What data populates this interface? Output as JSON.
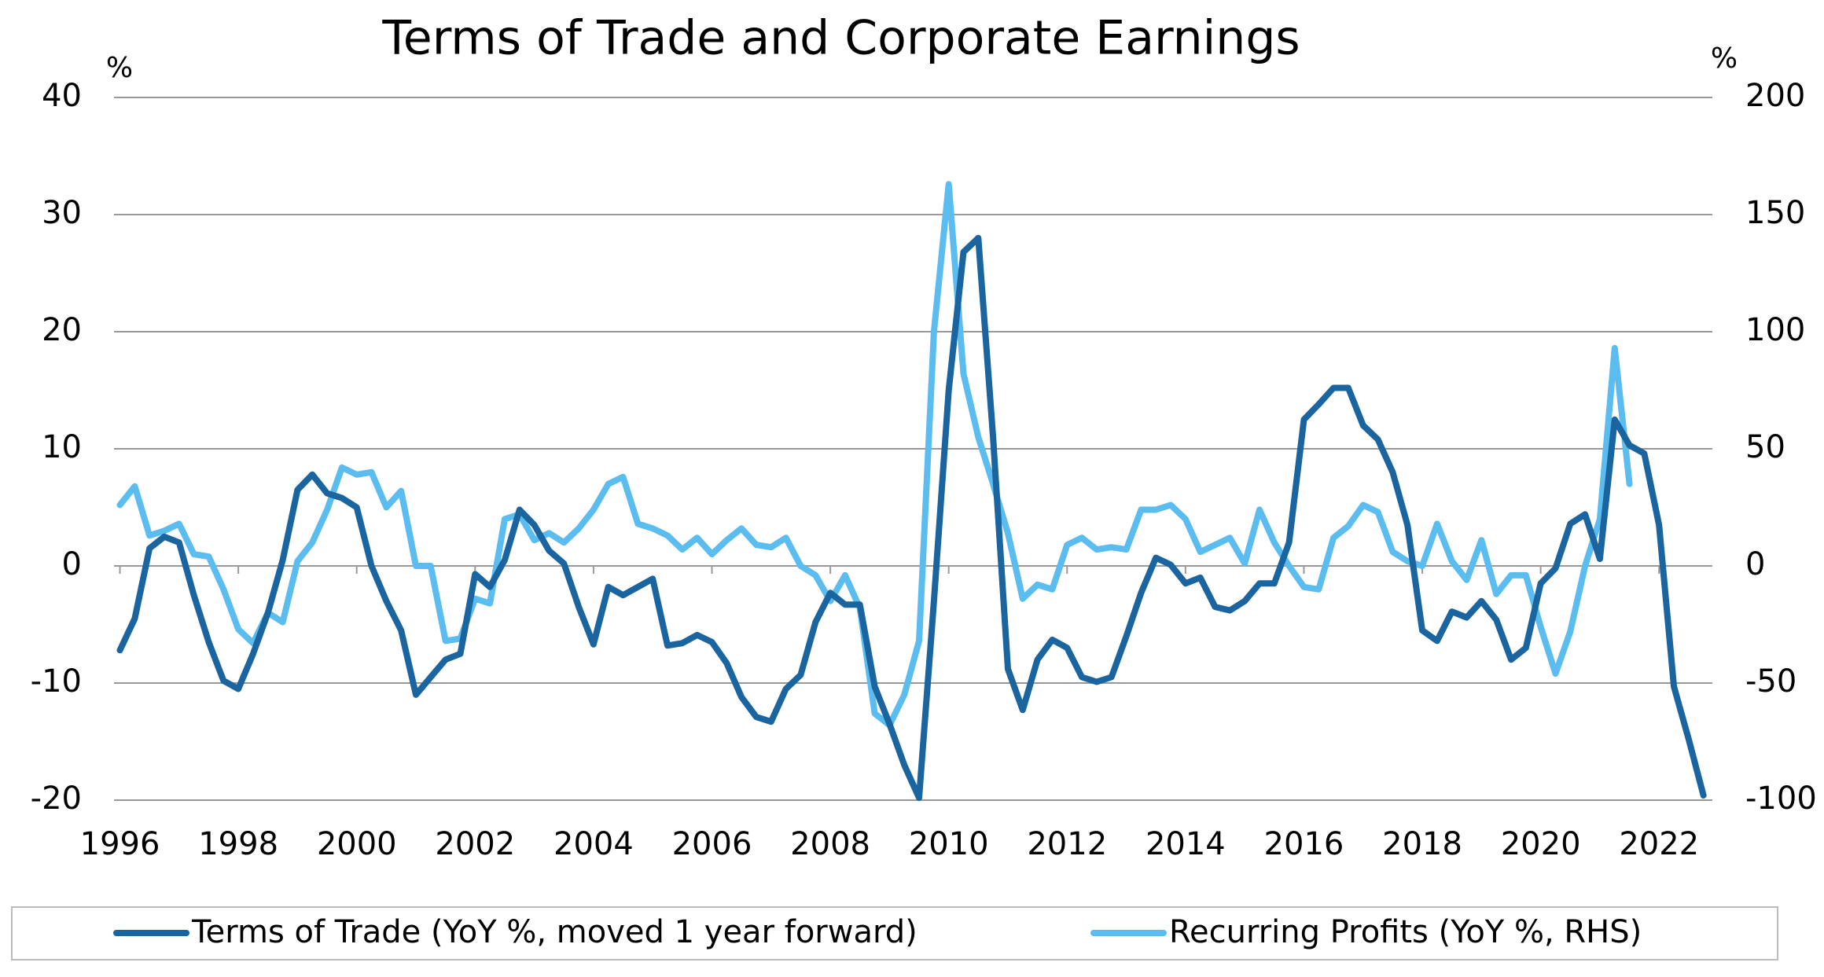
{
  "chart_data": {
    "type": "line",
    "title": "Terms of Trade and Corporate Earnings",
    "y_unit": "%",
    "y2_unit": "%",
    "x": [
      1996,
      1996.25,
      1996.5,
      1996.75,
      1997,
      1997.25,
      1997.5,
      1997.75,
      1998,
      1998.25,
      1998.5,
      1998.75,
      1999,
      1999.25,
      1999.5,
      1999.75,
      2000,
      2000.25,
      2000.5,
      2000.75,
      2001,
      2001.25,
      2001.5,
      2001.75,
      2002,
      2002.25,
      2002.5,
      2002.75,
      2003,
      2003.25,
      2003.5,
      2003.75,
      2004,
      2004.25,
      2004.5,
      2004.75,
      2005,
      2005.25,
      2005.5,
      2005.75,
      2006,
      2006.25,
      2006.5,
      2006.75,
      2007,
      2007.25,
      2007.5,
      2007.75,
      2008,
      2008.25,
      2008.5,
      2008.75,
      2009,
      2009.25,
      2009.5,
      2009.75,
      2010,
      2010.25,
      2010.5,
      2010.75,
      2011,
      2011.25,
      2011.5,
      2011.75,
      2012,
      2012.25,
      2012.5,
      2012.75,
      2013,
      2013.25,
      2013.5,
      2013.75,
      2014,
      2014.25,
      2014.5,
      2014.75,
      2015,
      2015.25,
      2015.5,
      2015.75,
      2016,
      2016.25,
      2016.5,
      2016.75,
      2017,
      2017.25,
      2017.5,
      2017.75,
      2018,
      2018.25,
      2018.5,
      2018.75,
      2019,
      2019.25,
      2019.5,
      2019.75,
      2020,
      2020.25,
      2020.5,
      2020.75,
      2021,
      2021.25,
      2021.5,
      2021.75,
      2022,
      2022.25,
      2022.5,
      2022.75
    ],
    "series": [
      {
        "name": "Terms of Trade (YoY %, moved 1 year forward)",
        "color": "#1a64a0",
        "axis": "y",
        "values": [
          -7.2,
          -4.5,
          1.5,
          2.5,
          2.0,
          -2.5,
          -6.5,
          -9.8,
          -10.5,
          -7.5,
          -4,
          0.5,
          6.5,
          7.8,
          6.2,
          5.8,
          5,
          0,
          -3,
          -5.5,
          -11,
          -9.5,
          -8,
          -7.5,
          -0.7,
          -1.8,
          0.5,
          4.8,
          3.5,
          1.3,
          0.2,
          -3.5,
          -6.7,
          -1.8,
          -2.5,
          -1.8,
          -1.1,
          -6.8,
          -6.6,
          -5.9,
          -6.5,
          -8.3,
          -11.2,
          -12.9,
          -13.3,
          -10.5,
          -9.3,
          -4.8,
          -2.3,
          -3.3,
          -3.3,
          -10.3,
          -13.5,
          -17,
          -19.8,
          -3,
          15,
          26.8,
          28,
          11,
          -8.8,
          -12.3,
          -8,
          -6.3,
          -7,
          -9.5,
          -9.9,
          -9.5,
          -6,
          -2.3,
          0.7,
          0.1,
          -1.5,
          -1,
          -3.5,
          -3.8,
          -3,
          -1.5,
          -1.5,
          2,
          12.5,
          13.8,
          15.2,
          15.2,
          12,
          10.8,
          8,
          3.5,
          -5.5,
          -6.4,
          -3.9,
          -4.4,
          -3,
          -4.6,
          -8,
          -7,
          -1.5,
          -0.2,
          3.6,
          4.4,
          0.6,
          12.5,
          10.3,
          9.6,
          3.5,
          -10.3,
          -14.8,
          -19.6
        ]
      },
      {
        "name": "Recurring Profits (YoY %, RHS)",
        "color": "#5bbcf0",
        "axis": "y2",
        "values": [
          26,
          34,
          13,
          15,
          18,
          5,
          4,
          -10,
          -27,
          -33,
          -20,
          -24,
          2,
          10,
          24,
          42,
          39,
          40,
          25,
          32,
          0,
          0,
          -32,
          -31,
          -14,
          -16,
          20,
          22,
          11,
          14,
          10,
          16,
          24,
          35,
          38,
          18,
          16,
          13,
          7,
          12,
          5,
          11,
          16,
          9,
          8,
          12,
          0,
          -4,
          -15,
          -4,
          -18,
          -63,
          -68,
          -55,
          -32,
          100,
          163,
          82,
          55,
          35,
          14,
          -14,
          -8,
          -10,
          9,
          12,
          7,
          8,
          7,
          24,
          24,
          26,
          20,
          6,
          9,
          12,
          1,
          24,
          10,
          0,
          -9,
          -10,
          12,
          17,
          26,
          23,
          6,
          2,
          0,
          18,
          2,
          -6,
          11,
          -12,
          -4,
          -4,
          -26,
          -46,
          -28,
          0,
          20,
          93,
          35,
          null,
          null,
          null,
          null,
          null
        ]
      }
    ],
    "xlim": [
      1995.9,
      2022.9
    ],
    "xticks": [
      1996,
      1998,
      2000,
      2002,
      2004,
      2006,
      2008,
      2010,
      2012,
      2014,
      2016,
      2018,
      2020,
      2022
    ],
    "ylim": [
      -20,
      40
    ],
    "yticks": [
      -20,
      -10,
      0,
      10,
      20,
      30,
      40
    ],
    "y2lim": [
      -100,
      200
    ],
    "y2ticks": [
      -100,
      -50,
      0,
      50,
      100,
      150,
      200
    ],
    "grid": true,
    "legend": "bottom"
  }
}
